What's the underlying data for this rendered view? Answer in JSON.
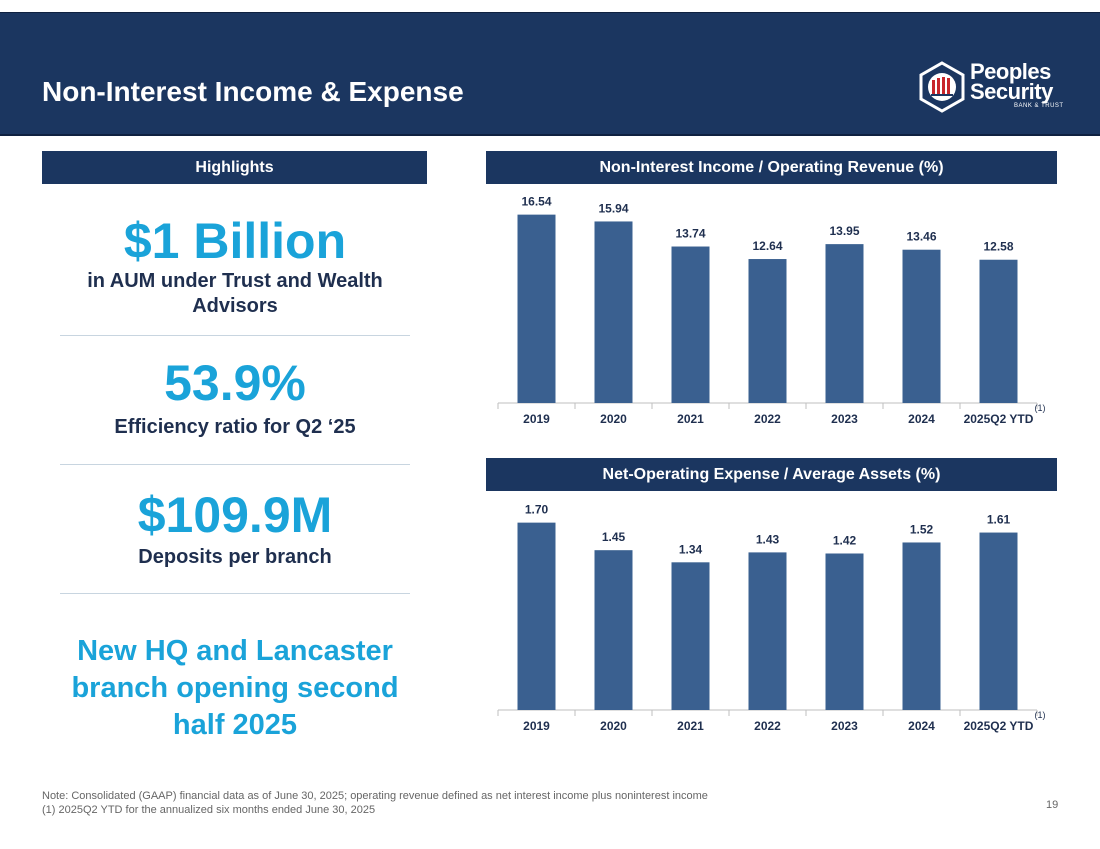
{
  "header": {
    "title": "Non-Interest Income & Expense",
    "logo_line1": "Peoples",
    "logo_line2": "Security",
    "logo_line3": "BANK & TRUST"
  },
  "highlights": {
    "heading": "Highlights",
    "items": [
      {
        "value": "$1 Billion",
        "label": "in AUM under Trust and Wealth Advisors"
      },
      {
        "value": "53.9%",
        "label": "Efficiency ratio for Q2 ‘25"
      },
      {
        "value": "$109.9M",
        "label": "Deposits per branch"
      }
    ],
    "promo": "New HQ and Lancaster branch opening second half 2025"
  },
  "chart_data": [
    {
      "type": "bar",
      "title": "Non-Interest Income / Operating Revenue (%)",
      "categories": [
        "2019",
        "2020",
        "2021",
        "2022",
        "2023",
        "2024",
        "2025Q2 YTD"
      ],
      "values": [
        16.54,
        15.94,
        13.74,
        12.64,
        13.95,
        13.46,
        12.58
      ],
      "labels": [
        "16.54",
        "15.94",
        "13.74",
        "12.64",
        "13.95",
        "13.46",
        "12.58"
      ],
      "footnote_marker": "(1)",
      "ylim": [
        0,
        18
      ],
      "color": "#3a6090"
    },
    {
      "type": "bar",
      "title": "Net-Operating Expense / Average Assets (%)",
      "categories": [
        "2019",
        "2020",
        "2021",
        "2022",
        "2023",
        "2024",
        "2025Q2 YTD"
      ],
      "values": [
        1.7,
        1.45,
        1.34,
        1.43,
        1.42,
        1.52,
        1.61
      ],
      "labels": [
        "1.70",
        "1.45",
        "1.34",
        "1.43",
        "1.42",
        "1.52",
        "1.61"
      ],
      "footnote_marker": "(1)",
      "ylim": [
        0,
        1.86
      ],
      "color": "#3a6090"
    }
  ],
  "footer": {
    "note1": "Note: Consolidated (GAAP) financial data as of June 30, 2025; operating revenue defined as net interest income plus noninterest income",
    "note2": "(1) 2025Q2 YTD for the annualized six months ended June 30, 2025",
    "page": "19"
  },
  "colors": {
    "navy": "#1b3660",
    "accent": "#1aa3d9",
    "bar": "#3a6090",
    "logo_red": "#c8262b"
  }
}
